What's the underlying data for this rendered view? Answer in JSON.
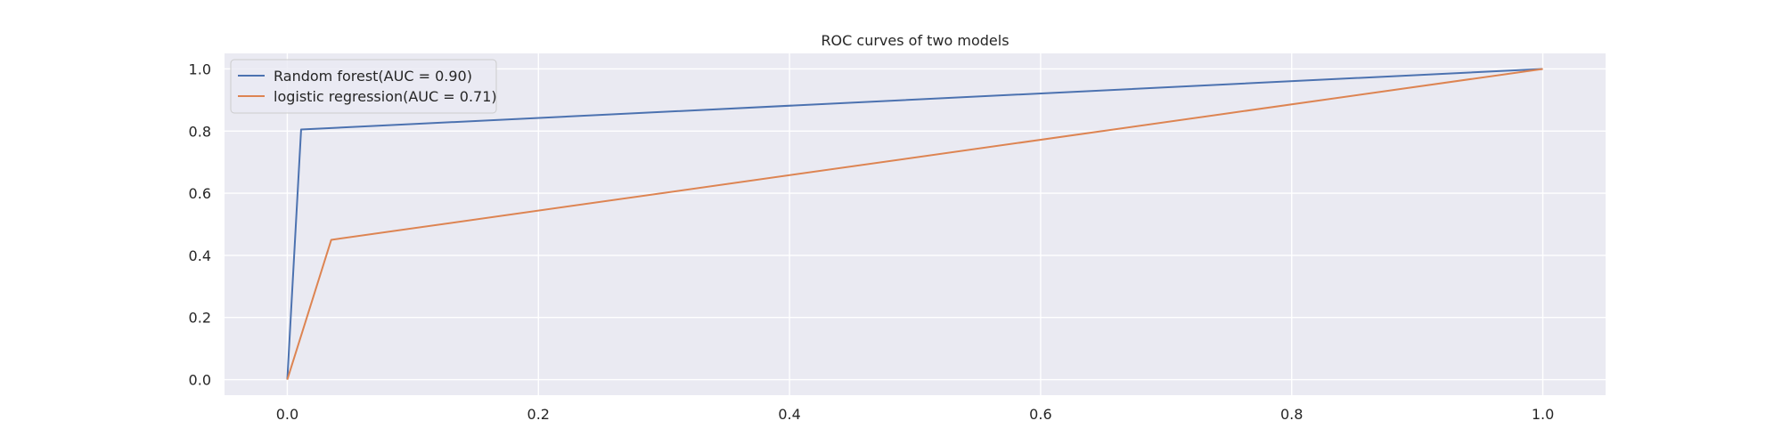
{
  "chart_data": {
    "type": "line",
    "title": "ROC curves of two models",
    "xlabel": "",
    "ylabel": "",
    "xlim": [
      -0.05,
      1.05
    ],
    "ylim": [
      -0.05,
      1.05
    ],
    "xticks": [
      0.0,
      0.2,
      0.4,
      0.6,
      0.8,
      1.0
    ],
    "xtick_labels": [
      "0.0",
      "0.2",
      "0.4",
      "0.6",
      "0.8",
      "1.0"
    ],
    "yticks": [
      0.0,
      0.2,
      0.4,
      0.6,
      0.8,
      1.0
    ],
    "ytick_labels": [
      "0.0",
      "0.2",
      "0.4",
      "0.6",
      "0.8",
      "1.0"
    ],
    "grid": true,
    "background": "#eaeaf2",
    "legend_position": "top-left",
    "series": [
      {
        "name": "Random forest(AUC = 0.90)",
        "color": "#4c72b0",
        "x": [
          0.0,
          0.011,
          1.0
        ],
        "y": [
          0.0,
          0.805,
          1.0
        ]
      },
      {
        "name": "logistic regression(AUC = 0.71)",
        "color": "#dd8452",
        "x": [
          0.0,
          0.035,
          1.0
        ],
        "y": [
          0.0,
          0.45,
          1.0
        ]
      }
    ]
  }
}
